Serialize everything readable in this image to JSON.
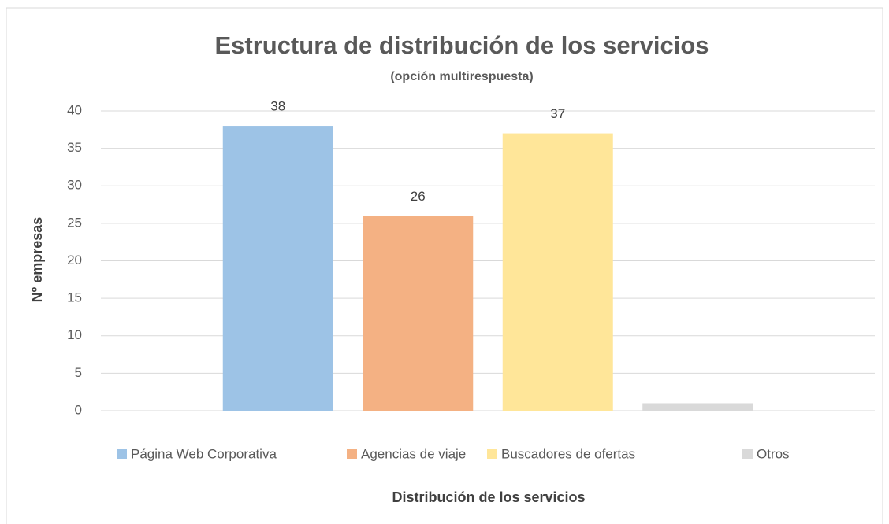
{
  "chart_data": {
    "type": "bar",
    "title": "Estructura de distribución de los servicios",
    "subtitle": "(opción multirespuesta)",
    "y_label": "Nº empresas",
    "x_label": "Distribución de los servicios",
    "categories": [
      null
    ],
    "series": [
      {
        "name": "Página Web Corporativa",
        "color": "#9dc3e6",
        "values": [
          38
        ],
        "value_labels": [
          "38"
        ]
      },
      {
        "name": "Agencias de viaje",
        "color": "#f4b183",
        "values": [
          26
        ],
        "value_labels": [
          "26"
        ]
      },
      {
        "name": "Buscadores de ofertas",
        "color": "#ffe699",
        "values": [
          37
        ],
        "value_labels": [
          "37"
        ]
      },
      {
        "name": "Otros",
        "color": "#d9d9d9",
        "values": [
          1
        ],
        "value_labels": [
          null
        ]
      }
    ],
    "ylim": [
      0,
      40
    ],
    "yticks": [
      0,
      5,
      10,
      15,
      20,
      25,
      30,
      35,
      40
    ],
    "grid": true,
    "legend": "bottom"
  }
}
